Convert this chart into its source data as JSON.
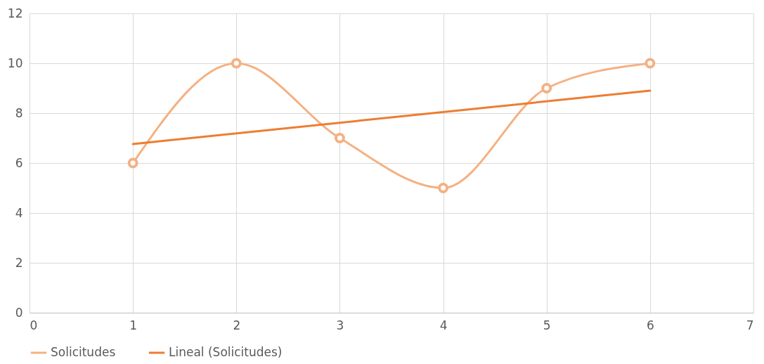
{
  "chart_data": {
    "type": "line",
    "x": [
      1,
      2,
      3,
      4,
      5,
      6
    ],
    "series": [
      {
        "name": "Solicitudes",
        "color": "#f4b183",
        "values": [
          6,
          10,
          7,
          5,
          9,
          10
        ],
        "marker": "circle"
      },
      {
        "name": "Lineal (Solicitudes)",
        "color": "#ed7d31",
        "type": "line",
        "x": [
          1,
          6
        ],
        "values": [
          6.76,
          8.9
        ],
        "marker": "none"
      }
    ],
    "xlim": [
      0,
      7
    ],
    "xticks": [
      0,
      1,
      2,
      3,
      4,
      5,
      6,
      7
    ],
    "ylim": [
      0,
      12
    ],
    "yticks": [
      0,
      2,
      4,
      6,
      8,
      10,
      12
    ],
    "grid": true,
    "legend": "bottom"
  }
}
